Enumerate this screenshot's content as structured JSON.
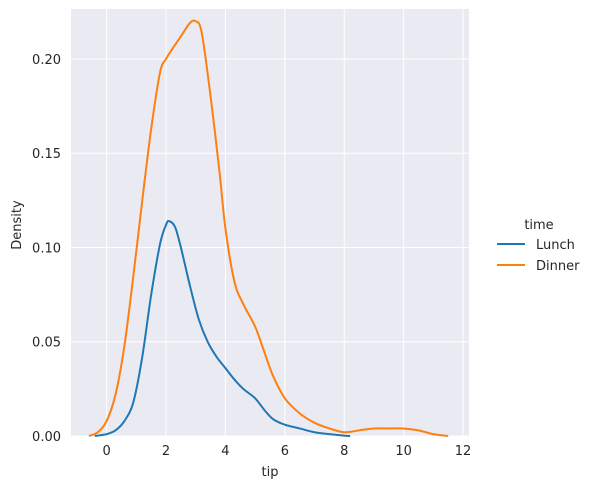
{
  "chart_data": {
    "type": "line",
    "subtype": "kde",
    "xlabel": "tip",
    "ylabel": "Density",
    "xlim": [
      -1.2,
      12.2
    ],
    "ylim": [
      0,
      0.2265
    ],
    "xticks": [
      0,
      2,
      4,
      6,
      8,
      10,
      12
    ],
    "xtick_labels": [
      "0",
      "2",
      "4",
      "6",
      "8",
      "10",
      "12"
    ],
    "yticks": [
      0,
      0.05,
      0.1,
      0.15,
      0.2
    ],
    "ytick_labels": [
      "0.00",
      "0.05",
      "0.10",
      "0.15",
      "0.20"
    ],
    "grid": true,
    "legend": {
      "title": "time",
      "placement": "right",
      "entries": [
        "Lunch",
        "Dinner"
      ]
    },
    "series": [
      {
        "name": "Lunch",
        "color": "#1f77b4",
        "x": [
          -0.4,
          0,
          0.3,
          0.6,
          0.9,
          1.2,
          1.5,
          1.8,
          2.0,
          2.1,
          2.3,
          2.5,
          2.8,
          3.1,
          3.4,
          3.7,
          4.0,
          4.3,
          4.6,
          5.0,
          5.3,
          5.6,
          6.0,
          6.5,
          7.0,
          7.5,
          8.0,
          8.2
        ],
        "y": [
          0,
          0.001,
          0.003,
          0.008,
          0.018,
          0.042,
          0.075,
          0.102,
          0.112,
          0.114,
          0.111,
          0.1,
          0.08,
          0.062,
          0.05,
          0.042,
          0.036,
          0.03,
          0.025,
          0.02,
          0.014,
          0.009,
          0.006,
          0.004,
          0.002,
          0.001,
          0.0002,
          0
        ]
      },
      {
        "name": "Dinner",
        "color": "#ff7f0e",
        "x": [
          -0.6,
          -0.3,
          0,
          0.3,
          0.6,
          0.9,
          1.2,
          1.5,
          1.8,
          2.0,
          2.2,
          2.5,
          2.8,
          3.0,
          3.2,
          3.5,
          3.8,
          4.0,
          4.3,
          4.6,
          5.0,
          5.3,
          5.6,
          6.0,
          6.5,
          7.0,
          7.5,
          8.0,
          8.5,
          9.0,
          9.5,
          10.0,
          10.5,
          11.0,
          11.5
        ],
        "y": [
          0,
          0.002,
          0.008,
          0.022,
          0.048,
          0.085,
          0.125,
          0.163,
          0.193,
          0.2,
          0.205,
          0.212,
          0.219,
          0.22,
          0.214,
          0.18,
          0.14,
          0.11,
          0.082,
          0.07,
          0.058,
          0.045,
          0.032,
          0.02,
          0.012,
          0.007,
          0.004,
          0.002,
          0.003,
          0.004,
          0.004,
          0.004,
          0.003,
          0.001,
          0
        ]
      }
    ]
  }
}
